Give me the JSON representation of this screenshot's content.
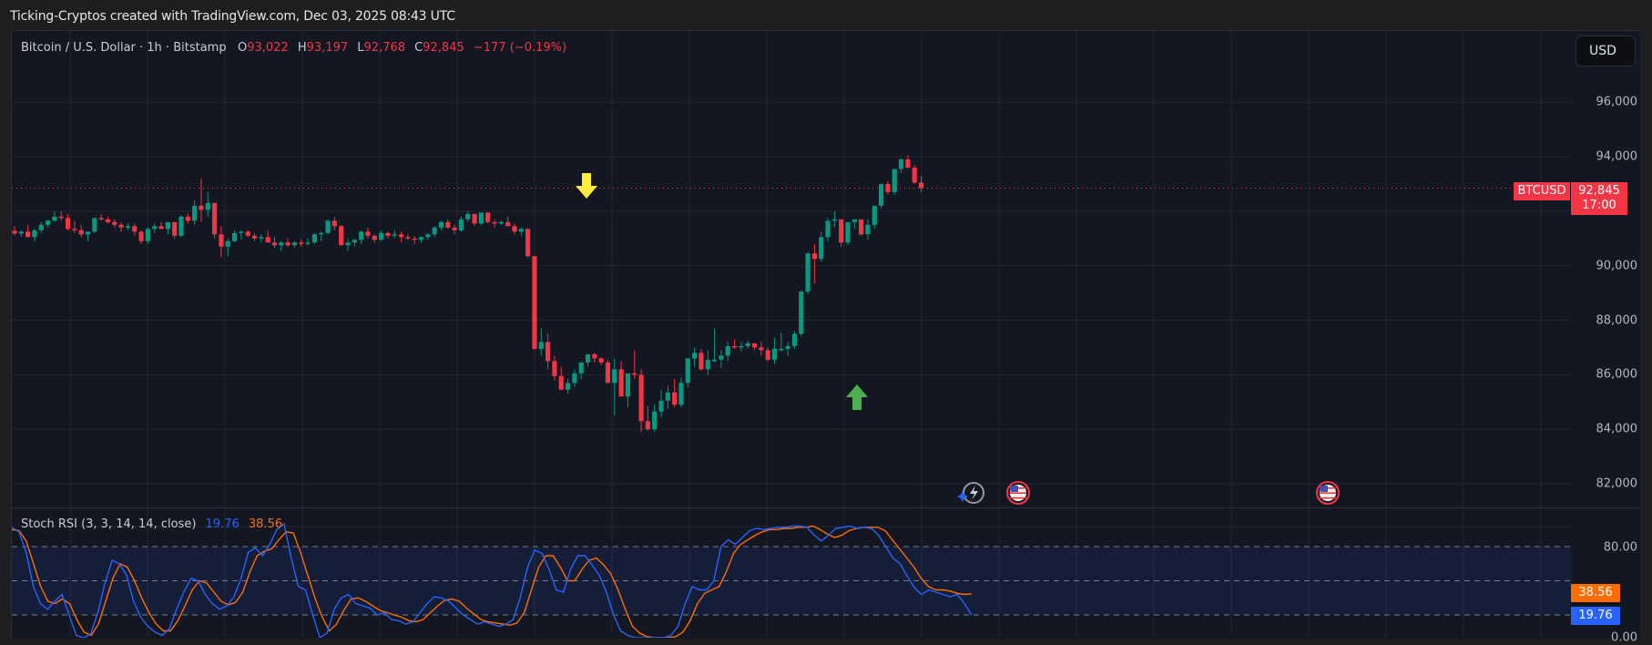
{
  "header": {
    "title": "Ticking-Cryptos created with TradingView.com, Dec 03, 2025 08:43 UTC"
  },
  "legend": {
    "symbol": "Bitcoin / U.S. Dollar · 1h · Bitstamp",
    "open_label": "O",
    "open": "93,022",
    "high_label": "H",
    "high": "93,197",
    "low_label": "L",
    "low": "92,768",
    "close_label": "C",
    "close": "92,845",
    "change": "−177 (−0.19%)"
  },
  "currency_button": "USD",
  "price_scale": {
    "ticks": [
      "96,000",
      "94,000",
      "90,000",
      "88,000",
      "86,000",
      "84,000",
      "82,000"
    ],
    "symbol_badge": "BTCUSD",
    "last_price": "92,845",
    "countdown": "17:00"
  },
  "stoch_rsi": {
    "label": "Stoch RSI (3, 3, 14, 14, close)",
    "k_value": "19.76",
    "d_value": "38.56",
    "levels": [
      "80.00",
      "0.00"
    ]
  },
  "colors": {
    "up": "#089981",
    "down": "#f23645",
    "background": "#131722",
    "grid": "#222631",
    "k_line": "#2962ff",
    "d_line": "#ff6d00",
    "signal_down_arrow": "#ffeb3b",
    "signal_up_arrow": "#4caf50"
  },
  "chart_data": [
    {
      "type": "candlestick",
      "title": "Bitcoin / U.S. Dollar · 1h · Bitstamp",
      "ylabel": "USD",
      "ylim": [
        81200,
        97500
      ],
      "y_ticks": [
        82000,
        84000,
        86000,
        88000,
        90000,
        94000,
        96000
      ],
      "last_price": 92845,
      "annotations": [
        {
          "type": "arrow-down",
          "color": "yellow",
          "near_price": 92900,
          "candle_index": 75
        },
        {
          "type": "arrow-up",
          "color": "green",
          "near_price": 85300,
          "candle_index": 116
        }
      ],
      "events": [
        "lightning-icon",
        "us-flag-event",
        "us-flag-event"
      ],
      "candles_ohlc": [
        [
          91280,
          91450,
          91100,
          91180
        ],
        [
          91180,
          91300,
          91050,
          91250
        ],
        [
          91250,
          91500,
          91100,
          91050
        ],
        [
          91050,
          91350,
          90900,
          91300
        ],
        [
          91300,
          91600,
          91200,
          91500
        ],
        [
          91500,
          91700,
          91400,
          91650
        ],
        [
          91650,
          92000,
          91600,
          91800
        ],
        [
          91800,
          92000,
          91650,
          91750
        ],
        [
          91750,
          91900,
          91300,
          91350
        ],
        [
          91350,
          91650,
          91200,
          91300
        ],
        [
          91300,
          91500,
          91050,
          91150
        ],
        [
          91150,
          91250,
          90900,
          91250
        ],
        [
          91250,
          91750,
          91200,
          91750
        ],
        [
          91750,
          91900,
          91650,
          91700
        ],
        [
          91700,
          91800,
          91550,
          91600
        ],
        [
          91600,
          91700,
          91400,
          91500
        ],
        [
          91500,
          91600,
          91250,
          91400
        ],
        [
          91400,
          91550,
          91300,
          91450
        ],
        [
          91450,
          91550,
          91100,
          91250
        ],
        [
          91250,
          91300,
          90800,
          90900
        ],
        [
          90900,
          91400,
          90800,
          91350
        ],
        [
          91350,
          91550,
          91200,
          91450
        ],
        [
          91450,
          91600,
          91350,
          91350
        ],
        [
          91350,
          91600,
          91150,
          91600
        ],
        [
          91600,
          91600,
          91000,
          91100
        ],
        [
          91100,
          91850,
          91050,
          91800
        ],
        [
          91800,
          91900,
          91550,
          91650
        ],
        [
          91650,
          92400,
          91500,
          92200
        ],
        [
          92200,
          93200,
          91600,
          92050
        ],
        [
          92050,
          92700,
          91800,
          92300
        ],
        [
          92300,
          92300,
          91000,
          91150
        ],
        [
          91150,
          91450,
          90300,
          90700
        ],
        [
          90700,
          91000,
          90350,
          90900
        ],
        [
          90900,
          91300,
          90850,
          91200
        ],
        [
          91200,
          91300,
          90950,
          91250
        ],
        [
          91250,
          91300,
          91050,
          91100
        ],
        [
          91100,
          91200,
          90900,
          91000
        ],
        [
          91000,
          91150,
          90850,
          91050
        ],
        [
          91050,
          91300,
          90900,
          90850
        ],
        [
          90850,
          91050,
          90650,
          90750
        ],
        [
          90750,
          90900,
          90550,
          90850
        ],
        [
          90850,
          91000,
          90700,
          90750
        ],
        [
          90750,
          90900,
          90650,
          90850
        ],
        [
          90850,
          90950,
          90700,
          90800
        ],
        [
          90800,
          91000,
          90750,
          90850
        ],
        [
          90850,
          91200,
          90800,
          91150
        ],
        [
          91150,
          91250,
          90900,
          91200
        ],
        [
          91200,
          91700,
          91150,
          91650
        ],
        [
          91650,
          91800,
          91300,
          91450
        ],
        [
          91450,
          91500,
          90850,
          90750
        ],
        [
          90750,
          91000,
          90550,
          90850
        ],
        [
          90850,
          91000,
          90700,
          90950
        ],
        [
          90950,
          91300,
          90800,
          91250
        ],
        [
          91250,
          91400,
          91000,
          91100
        ],
        [
          91100,
          91150,
          90850,
          90950
        ],
        [
          90950,
          91300,
          90900,
          91200
        ],
        [
          91200,
          91250,
          91000,
          91100
        ],
        [
          91100,
          91300,
          91000,
          91150
        ],
        [
          91150,
          91250,
          90850,
          91050
        ],
        [
          91050,
          91150,
          90950,
          91000
        ],
        [
          91000,
          91100,
          90800,
          90950
        ],
        [
          90950,
          91050,
          90850,
          91050
        ],
        [
          91050,
          91200,
          90950,
          91150
        ],
        [
          91150,
          91450,
          91050,
          91400
        ],
        [
          91400,
          91650,
          91300,
          91600
        ],
        [
          91600,
          91700,
          91350,
          91400
        ],
        [
          91400,
          91500,
          91150,
          91300
        ],
        [
          91300,
          91800,
          91250,
          91700
        ],
        [
          91700,
          92000,
          91600,
          91900
        ],
        [
          91900,
          91900,
          91450,
          91550
        ],
        [
          91550,
          91950,
          91500,
          91950
        ],
        [
          91950,
          91950,
          91550,
          91600
        ],
        [
          91600,
          91700,
          91400,
          91550
        ],
        [
          91550,
          91650,
          91500,
          91600
        ],
        [
          91600,
          91800,
          91450,
          91450
        ],
        [
          91450,
          91550,
          91150,
          91250
        ],
        [
          91250,
          91400,
          91100,
          91350
        ],
        [
          91350,
          91350,
          90300,
          90350
        ],
        [
          90350,
          90350,
          86900,
          86950
        ],
        [
          86950,
          87700,
          86700,
          87200
        ],
        [
          87200,
          87500,
          86200,
          86500
        ],
        [
          86500,
          86700,
          85800,
          85950
        ],
        [
          85950,
          86300,
          85600,
          85450
        ],
        [
          85450,
          85850,
          85300,
          85700
        ],
        [
          85700,
          86200,
          85550,
          86050
        ],
        [
          86050,
          86450,
          85850,
          86450
        ],
        [
          86450,
          86750,
          86300,
          86750
        ],
        [
          86750,
          86800,
          86450,
          86600
        ],
        [
          86600,
          86650,
          86350,
          86450
        ],
        [
          86450,
          86550,
          85700,
          85700
        ],
        [
          85700,
          86600,
          84500,
          86200
        ],
        [
          86200,
          86500,
          85900,
          85200
        ],
        [
          85200,
          86000,
          84800,
          86050
        ],
        [
          86050,
          86900,
          85850,
          86000
        ],
        [
          86000,
          86200,
          83900,
          84300
        ],
        [
          84300,
          84850,
          83950,
          84000
        ],
        [
          84000,
          84900,
          83900,
          84650
        ],
        [
          84650,
          85450,
          84450,
          85050
        ],
        [
          85050,
          85600,
          84750,
          85350
        ],
        [
          85350,
          85850,
          84800,
          84900
        ],
        [
          84900,
          85900,
          84800,
          85700
        ],
        [
          85700,
          86600,
          85550,
          86600
        ],
        [
          86600,
          87000,
          86300,
          86800
        ],
        [
          86800,
          86950,
          86150,
          86200
        ],
        [
          86200,
          86900,
          86000,
          86550
        ],
        [
          86550,
          87700,
          86450,
          86550
        ],
        [
          86550,
          86900,
          86250,
          86700
        ],
        [
          86700,
          87200,
          86500,
          87050
        ],
        [
          87050,
          87300,
          86950,
          87000
        ],
        [
          87000,
          87200,
          86850,
          87050
        ],
        [
          87050,
          87250,
          86950,
          87150
        ],
        [
          87150,
          87150,
          86900,
          87000
        ],
        [
          87000,
          87200,
          86700,
          86900
        ],
        [
          86900,
          87000,
          86500,
          86550
        ],
        [
          86550,
          87350,
          86400,
          86950
        ],
        [
          86950,
          87550,
          86850,
          86950
        ],
        [
          86950,
          87200,
          86700,
          87050
        ],
        [
          87050,
          87600,
          86950,
          87500
        ],
        [
          87500,
          89100,
          87400,
          89050
        ],
        [
          89050,
          90500,
          88950,
          90450
        ],
        [
          90450,
          90800,
          89350,
          90250
        ],
        [
          90250,
          91250,
          90150,
          91050
        ],
        [
          91050,
          91750,
          90900,
          91650
        ],
        [
          91650,
          92000,
          91400,
          91700
        ],
        [
          91700,
          91700,
          90700,
          90850
        ],
        [
          90850,
          91600,
          90750,
          91600
        ],
        [
          91600,
          91700,
          91350,
          91700
        ],
        [
          91700,
          91600,
          91100,
          91150
        ],
        [
          91150,
          91700,
          90950,
          91500
        ],
        [
          91500,
          92200,
          91350,
          92200
        ],
        [
          92200,
          93000,
          92100,
          93000
        ],
        [
          93000,
          93100,
          92600,
          92700
        ],
        [
          92700,
          93500,
          92600,
          93550
        ],
        [
          93550,
          93950,
          93400,
          93900
        ],
        [
          93900,
          94050,
          93550,
          93600
        ],
        [
          93600,
          93700,
          93000,
          93050
        ],
        [
          93050,
          93300,
          92700,
          92845
        ]
      ]
    },
    {
      "type": "line",
      "title": "Stoch RSI (3, 3, 14, 14, close)",
      "ylim": [
        0,
        100
      ],
      "levels": [
        80,
        50,
        20
      ],
      "series": [
        {
          "name": "%K",
          "color": "#2962ff",
          "last": 19.76,
          "values": [
            97,
            93,
            75,
            45,
            30,
            25,
            32,
            38,
            20,
            2,
            0,
            3,
            22,
            48,
            68,
            65,
            55,
            32,
            18,
            10,
            5,
            2,
            8,
            25,
            40,
            52,
            50,
            38,
            30,
            25,
            28,
            36,
            52,
            75,
            79,
            72,
            82,
            95,
            100,
            70,
            45,
            42,
            20,
            0,
            4,
            25,
            35,
            38,
            30,
            28,
            26,
            20,
            22,
            16,
            15,
            12,
            14,
            22,
            30,
            36,
            35,
            32,
            26,
            20,
            16,
            12,
            14,
            12,
            10,
            12,
            16,
            36,
            62,
            77,
            74,
            60,
            42,
            40,
            60,
            72,
            72,
            64,
            55,
            40,
            20,
            6,
            2,
            0,
            0,
            0,
            0,
            0,
            2,
            10,
            30,
            45,
            42,
            42,
            50,
            80,
            86,
            82,
            88,
            94,
            96,
            95,
            96,
            97,
            97,
            98,
            98,
            97,
            90,
            85,
            90,
            96,
            97,
            98,
            96,
            97,
            96,
            90,
            80,
            70,
            65,
            54,
            44,
            38,
            42,
            40,
            38,
            36,
            38,
            30,
            19.76
          ]
        },
        {
          "name": "%D",
          "color": "#ff6d00",
          "last": 38.56,
          "values": [
            95,
            94,
            85,
            65,
            45,
            32,
            30,
            34,
            30,
            16,
            5,
            2,
            12,
            32,
            52,
            65,
            62,
            50,
            35,
            22,
            12,
            6,
            6,
            15,
            28,
            42,
            50,
            48,
            40,
            32,
            29,
            31,
            40,
            58,
            72,
            76,
            78,
            86,
            93,
            92,
            75,
            55,
            35,
            18,
            6,
            12,
            24,
            34,
            35,
            32,
            28,
            24,
            22,
            20,
            18,
            15,
            14,
            16,
            22,
            28,
            33,
            34,
            32,
            26,
            21,
            16,
            14,
            13,
            12,
            11,
            13,
            22,
            42,
            62,
            72,
            72,
            62,
            50,
            50,
            60,
            68,
            70,
            64,
            56,
            42,
            25,
            10,
            4,
            1,
            0,
            0,
            0,
            1,
            5,
            15,
            30,
            39,
            42,
            45,
            58,
            74,
            82,
            86,
            90,
            93,
            95,
            95,
            96,
            96,
            97,
            97,
            98,
            95,
            91,
            88,
            90,
            94,
            96,
            97,
            97,
            97,
            94,
            86,
            78,
            70,
            62,
            52,
            45,
            42,
            42,
            41,
            39,
            38,
            38.56
          ]
        }
      ]
    }
  ]
}
